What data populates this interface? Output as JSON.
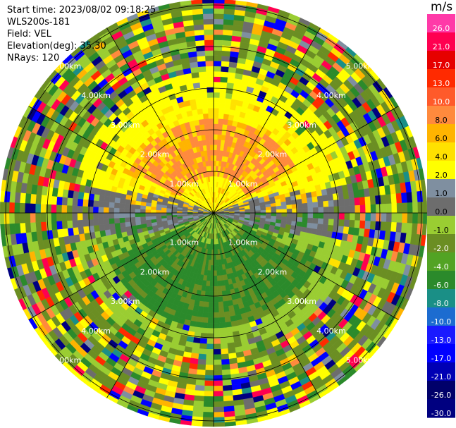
{
  "header": {
    "start_time": "Start time: 2023/08/02 09:18:25",
    "instrument": "WLS200s-181",
    "field": "Field: VEL",
    "elevation": "Elevation(deg): 35.30",
    "nrays": "NRays: 120"
  },
  "colorbar": {
    "unit": "m/s",
    "ticks": [
      "-30.0",
      "-26.0",
      "-21.0",
      "-17.0",
      "-13.0",
      "-10.0",
      "-8.0",
      "-6.0",
      "-4.0",
      "-2.0",
      "-1.0",
      "0.0",
      "1.0",
      "2.0",
      "4.0",
      "6.0",
      "8.0",
      "10.0",
      "13.0",
      "17.0",
      "21.0",
      "26.0"
    ],
    "colors": [
      "#000080",
      "#00006a",
      "#0000b4",
      "#0000ff",
      "#1a1aff",
      "#1c6cd0",
      "#1a8f86",
      "#2b8a2b",
      "#52a324",
      "#6b8e23",
      "#9acd32",
      "#6d6d6d",
      "#7f8fa0",
      "#ffff00",
      "#ffe100",
      "#ffb400",
      "#ff8a3d",
      "#ff5a2a",
      "#ff2a00",
      "#e60000",
      "#ff0050",
      "#ff3aa8"
    ]
  },
  "chart_data": {
    "type": "heatmap",
    "projection": "polar-ppi",
    "field": "VEL",
    "units": "m/s",
    "nrays": 120,
    "elevation_deg": 35.3,
    "range_rings_km": [
      1,
      2,
      3,
      4,
      5
    ],
    "ring_labels": [
      "1.00km",
      "2.00km",
      "3.00km",
      "4.00km",
      "5.00km"
    ],
    "max_range_km": 5.8,
    "gates_per_ray": 46,
    "color_levels": [
      -30.0,
      -26.0,
      -21.0,
      -17.0,
      -13.0,
      -10.0,
      -8.0,
      -6.0,
      -4.0,
      -2.0,
      -1.0,
      0.0,
      1.0,
      2.0,
      4.0,
      6.0,
      8.0,
      10.0,
      13.0,
      17.0,
      21.0,
      26.0,
      30.0
    ]
  }
}
